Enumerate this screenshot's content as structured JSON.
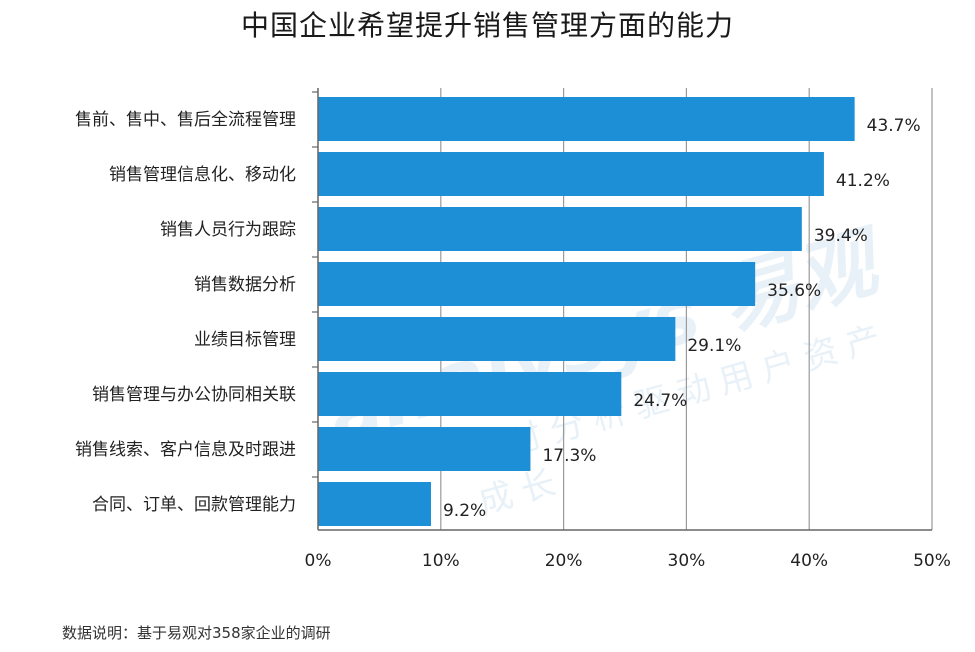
{
  "chart_data": {
    "type": "bar",
    "orientation": "horizontal",
    "title": "中国企业希望提升销售管理方面的能力",
    "categories": [
      "售前、售中、售后全流程管理",
      "销售管理信息化、移动化",
      "销售人员行为跟踪",
      "销售数据分析",
      "业绩目标管理",
      "销售管理与办公协同相关联",
      "销售线索、客户信息及时跟进",
      "合同、订单、回款管理能力"
    ],
    "values": [
      43.7,
      41.2,
      39.4,
      35.6,
      29.1,
      24.7,
      17.3,
      9.2
    ],
    "data_labels": [
      "43.7%",
      "41.2%",
      "39.4%",
      "35.6%",
      "29.1%",
      "24.7%",
      "17.3%",
      "9.2%"
    ],
    "x_ticks": [
      "0%",
      "10%",
      "20%",
      "30%",
      "40%",
      "50%"
    ],
    "xlim": [
      0,
      50
    ],
    "grid": true,
    "xlabel": "",
    "ylabel": "",
    "bar_color": "#1c8fd6"
  },
  "footnote": "数据说明：基于易观对358家企业的调研",
  "watermark": {
    "logo": "analysys 易观",
    "slogan": "实时分析驱动用户资产成长"
  }
}
